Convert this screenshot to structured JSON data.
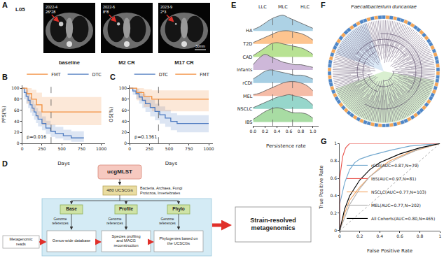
{
  "panel_labels": [
    "A",
    "B",
    "C",
    "D",
    "E",
    "F",
    "G"
  ],
  "ct_images": {
    "patient": "L05",
    "scale_bar": "30mm",
    "scans": [
      {
        "date": "2022-4",
        "size": "26*28",
        "label": "baseline"
      },
      {
        "date": "2022-6",
        "size": "8*8",
        "label": "M2 CR"
      },
      {
        "date": "2023-9",
        "size": "2*3",
        "label": "M17 CR"
      }
    ]
  },
  "chart_data": [
    {
      "type": "step",
      "xlabel": "Days",
      "ylabel": "PFS(%)",
      "xlim": [
        0,
        1050
      ],
      "xticks": [
        0,
        250,
        500,
        750,
        1000
      ],
      "ylim": [
        0,
        105
      ],
      "yticks": [
        0,
        20,
        40,
        60,
        80,
        100
      ],
      "reference_x": 365,
      "annotation": "p=0.016",
      "legend": "top right",
      "series": [
        {
          "name": "DTC",
          "color": "#4f7cc1",
          "x": [
            0,
            25,
            50,
            75,
            100,
            125,
            150,
            175,
            200,
            250,
            300,
            360,
            420,
            520,
            620,
            780
          ],
          "values": [
            100,
            92,
            85,
            78,
            70,
            64,
            57,
            50,
            44,
            36,
            28,
            22,
            18,
            14,
            10,
            10
          ],
          "ci_lower": [
            100,
            80,
            72,
            64,
            56,
            50,
            43,
            37,
            31,
            24,
            17,
            12,
            9,
            6,
            3,
            3
          ],
          "ci_upper": [
            100,
            100,
            97,
            91,
            84,
            78,
            71,
            64,
            58,
            49,
            41,
            34,
            30,
            25,
            22,
            22
          ]
        },
        {
          "name": "FMT",
          "color": "#f28e3c",
          "x": [
            0,
            60,
            120,
            180,
            250,
            1000
          ],
          "values": [
            100,
            90,
            80,
            70,
            57,
            57
          ],
          "ci_lower": [
            100,
            72,
            58,
            46,
            33,
            28
          ],
          "ci_upper": [
            100,
            100,
            97,
            92,
            84,
            86
          ]
        }
      ]
    },
    {
      "type": "step",
      "xlabel": "Days",
      "ylabel": "OS(%)",
      "xlim": [
        0,
        1050
      ],
      "xticks": [
        0,
        250,
        500,
        750,
        1000
      ],
      "ylim": [
        0,
        105
      ],
      "yticks": [
        0,
        20,
        40,
        60,
        80,
        100
      ],
      "reference_x": 365,
      "annotation": "p=0.1361",
      "legend": "top right",
      "series": [
        {
          "name": "DTC",
          "color": "#4f7cc1",
          "x": [
            0,
            40,
            80,
            120,
            160,
            200,
            260,
            320,
            380,
            450,
            520,
            600,
            1000
          ],
          "values": [
            100,
            95,
            90,
            84,
            78,
            72,
            65,
            58,
            52,
            46,
            40,
            36,
            36
          ],
          "ci_lower": [
            100,
            88,
            80,
            72,
            64,
            57,
            49,
            42,
            36,
            30,
            24,
            20,
            18
          ],
          "ci_upper": [
            100,
            100,
            99,
            95,
            90,
            85,
            79,
            72,
            67,
            61,
            55,
            51,
            52
          ]
        },
        {
          "name": "FMT",
          "color": "#f28e3c",
          "x": [
            0,
            90,
            180,
            280,
            1000
          ],
          "values": [
            100,
            92,
            85,
            80,
            80
          ],
          "ci_lower": [
            100,
            78,
            66,
            58,
            50
          ],
          "ci_upper": [
            100,
            100,
            98,
            96,
            98
          ]
        }
      ]
    },
    {
      "type": "ridgeline",
      "xlabel": "Persistence rate",
      "xlim": [
        0,
        1.1
      ],
      "xticks": [
        {
          "value": 0,
          "label": "0.0"
        },
        0.2,
        0.4,
        0.6,
        0.8,
        {
          "value": 1,
          "label": "1.0"
        }
      ],
      "reference_lines": [
        0.33,
        0.66
      ],
      "zone_labels": [
        "LLC",
        "MLC",
        "HLC"
      ],
      "x": [
        0,
        0.1,
        0.2,
        0.3,
        0.4,
        0.5,
        0.6,
        0.7,
        0.8,
        0.9,
        1
      ],
      "series": [
        {
          "name": "HA",
          "color": "#a6cee3",
          "values": [
            0.1,
            0.3,
            0.6,
            0.9,
            1.1,
            1.2,
            1.0,
            0.8,
            0.6,
            0.4,
            0.2
          ]
        },
        {
          "name": "T2D",
          "color": "#fdbf86",
          "values": [
            0.1,
            0.3,
            0.5,
            0.7,
            0.9,
            1.0,
            1.0,
            0.9,
            0.8,
            0.6,
            0.3
          ]
        },
        {
          "name": "CAD",
          "color": "#b2df8a",
          "values": [
            0.1,
            0.4,
            0.7,
            1.0,
            1.1,
            1.0,
            0.9,
            0.8,
            0.7,
            0.5,
            0.2
          ]
        },
        {
          "name": "Infants",
          "color": "#cab2d6",
          "values": [
            0.4,
            0.9,
            1.2,
            1.0,
            0.8,
            0.6,
            0.5,
            0.4,
            0.4,
            0.3,
            0.2
          ]
        },
        {
          "name": "rCDI",
          "color": "#9ecae1",
          "values": [
            0.3,
            0.6,
            0.9,
            1.0,
            0.9,
            0.8,
            0.7,
            0.6,
            0.6,
            0.5,
            0.3
          ]
        },
        {
          "name": "MEL",
          "color": "#f4b6a0",
          "values": [
            0.1,
            0.2,
            0.4,
            0.6,
            0.8,
            1.0,
            1.1,
            1.1,
            1.0,
            0.8,
            0.4
          ]
        },
        {
          "name": "NSCLC",
          "color": "#8dd3c7",
          "values": [
            0.1,
            0.3,
            0.5,
            0.7,
            0.9,
            1.0,
            1.1,
            1.0,
            0.9,
            0.7,
            0.3
          ]
        },
        {
          "name": "IBS",
          "color": "#a1d99b",
          "values": [
            0.2,
            0.5,
            0.8,
            1.0,
            1.1,
            1.0,
            0.8,
            0.7,
            0.7,
            0.6,
            0.3
          ]
        }
      ]
    },
    {
      "type": "roc",
      "xlabel": "False Positive Rate",
      "ylabel": "True Positive Rate",
      "xlim": [
        0,
        1
      ],
      "xticks": [
        0,
        0.2,
        0.4,
        0.6,
        0.8,
        1
      ],
      "ylim": [
        0,
        1
      ],
      "yticks": [
        0,
        0.2,
        0.4,
        0.6,
        0.8,
        1
      ],
      "legend": "bottom right",
      "series": [
        {
          "name": "rCDI(AUC=0.87,N=79)",
          "color": "#74a9cf",
          "x": [
            0,
            0,
            0.05,
            0.1,
            0.15,
            0.2,
            0.3,
            0.5,
            0.7,
            1
          ],
          "values": [
            0,
            0.3,
            0.55,
            0.7,
            0.78,
            0.82,
            0.86,
            0.92,
            0.97,
            1
          ]
        },
        {
          "name": "IBS(AUC=0.97,N=81)",
          "color": "#e8514a",
          "x": [
            0,
            0,
            0.03,
            0.06,
            0.1,
            0.2,
            1
          ],
          "values": [
            0,
            0.6,
            0.85,
            0.95,
            1,
            1,
            1
          ]
        },
        {
          "name": "NSCLC(AUC=0.77,N=103)",
          "color": "#f4a460",
          "x": [
            0,
            0.05,
            0.1,
            0.2,
            0.3,
            0.4,
            0.5,
            0.7,
            1
          ],
          "values": [
            0,
            0.2,
            0.35,
            0.5,
            0.62,
            0.72,
            0.8,
            0.9,
            1
          ]
        },
        {
          "name": "MEL(AUC=0.77,N=202)",
          "color": "#b0b0b0",
          "x": [
            0,
            0.05,
            0.1,
            0.2,
            0.3,
            0.45,
            0.6,
            0.8,
            1
          ],
          "values": [
            0,
            0.15,
            0.3,
            0.48,
            0.62,
            0.75,
            0.84,
            0.94,
            1
          ]
        },
        {
          "name": "All Cohorts(AUC=0.80,N=465)",
          "color": "#000000",
          "x": [
            0,
            0.05,
            0.1,
            0.2,
            0.3,
            0.4,
            0.6,
            0.8,
            1
          ],
          "values": [
            0,
            0.25,
            0.4,
            0.58,
            0.7,
            0.78,
            0.88,
            0.95,
            1
          ]
        }
      ]
    }
  ],
  "diagram": {
    "title": "ucgMLST",
    "genes": "480 UCSCGs",
    "taxa": [
      "Bacteria, Archaea, Fungi",
      "Protozoa, Invertebrates"
    ],
    "modules": [
      {
        "name": "Base",
        "output": "Genus-wide database"
      },
      {
        "name": "Profile",
        "output": "Species profiling and MACG reconstruction"
      },
      {
        "name": "Phylo",
        "output": "Phylogenies based on the UCSCGs"
      }
    ],
    "reference_label": "Genome references",
    "input": "Metagenomic reads",
    "result": "Strain-resolved metagenomics"
  },
  "tree": {
    "title": "Faecalibacterium duncaniae"
  }
}
